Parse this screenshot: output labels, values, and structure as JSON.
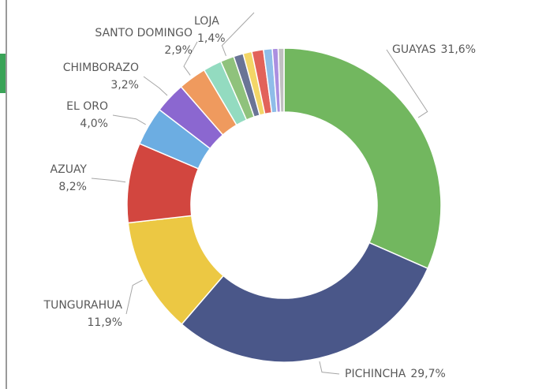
{
  "chart_data": {
    "type": "donut",
    "categories": [
      "GUAYAS",
      "PICHINCHA",
      "TUNGURAHUA",
      "AZUAY",
      "EL ORO",
      "CHIMBORAZO",
      "SANTO DOMINGO",
      null,
      "LOJA",
      null,
      null,
      null,
      null,
      null,
      null
    ],
    "values": [
      31.6,
      29.7,
      11.9,
      8.2,
      4.0,
      3.2,
      2.9,
      1.9,
      1.4,
      1.0,
      0.9,
      1.2,
      0.9,
      0.6,
      0.6
    ],
    "value_labels": [
      "31,6%",
      "29,7%",
      "11,9%",
      "8,2%",
      "4,0%",
      "3,2%",
      "2,9%",
      null,
      "1,4%",
      null,
      null,
      null,
      null,
      null,
      null
    ],
    "colors": [
      "#72b75f",
      "#4a5789",
      "#ecc843",
      "#d2463f",
      "#6cade2",
      "#8b67d0",
      "#ef9a5e",
      "#93dbc0",
      "#8fc27c",
      "#6a7496",
      "#f3d667",
      "#e2625a",
      "#8fbde9",
      "#ab8fe0",
      "#c0c0c0"
    ]
  }
}
